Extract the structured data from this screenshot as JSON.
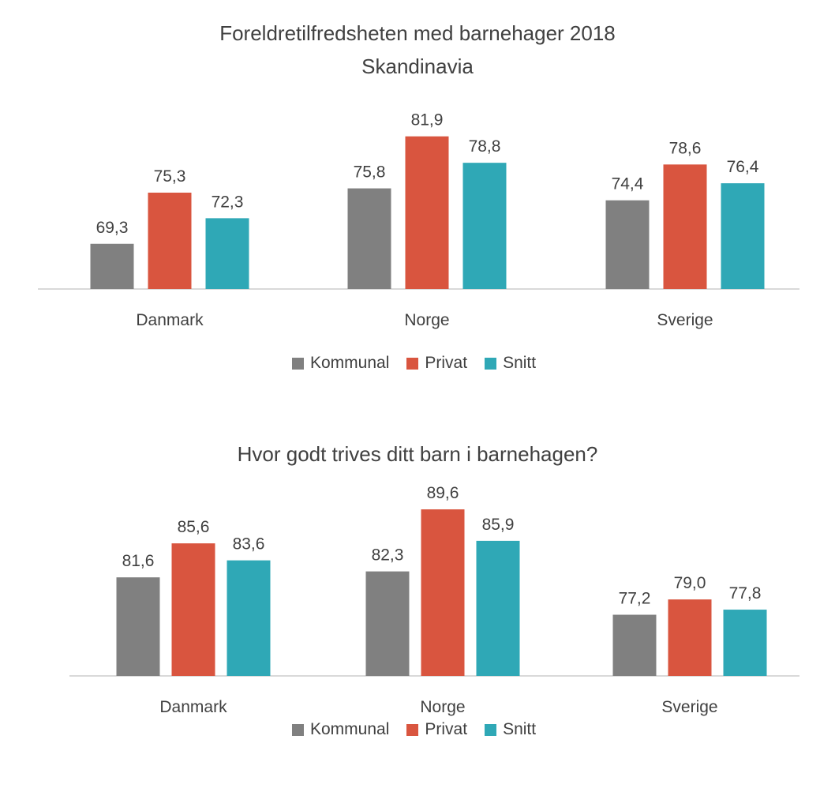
{
  "colors": {
    "Kommunal": "#808080",
    "Privat": "#d9553f",
    "Snitt": "#2fa8b6",
    "axis": "#d9d9d9"
  },
  "chart_data": [
    {
      "type": "bar",
      "title": "Foreldretilfredsheten med barnehager 2018",
      "subtitle": "Skandinavia",
      "categories": [
        "Danmark",
        "Norge",
        "Sverige"
      ],
      "series": [
        {
          "name": "Kommunal",
          "values": [
            69.3,
            75.8,
            74.4
          ]
        },
        {
          "name": "Privat",
          "values": [
            75.3,
            81.9,
            78.6
          ]
        },
        {
          "name": "Snitt",
          "values": [
            72.3,
            78.8,
            76.4
          ]
        }
      ],
      "data_labels": [
        [
          "69,3",
          "75,8",
          "74,4"
        ],
        [
          "75,3",
          "81,9",
          "78,6"
        ],
        [
          "72,3",
          "78,8",
          "76,4"
        ]
      ],
      "xlabel": "",
      "ylabel": "",
      "ylim": [
        64,
        84
      ],
      "grid": false,
      "legend_position": "bottom"
    },
    {
      "type": "bar",
      "title": "Hvor godt trives ditt barn i barnehagen?",
      "subtitle": "",
      "categories": [
        "Danmark",
        "Norge",
        "Sverige"
      ],
      "series": [
        {
          "name": "Kommunal",
          "values": [
            81.6,
            82.3,
            77.2
          ]
        },
        {
          "name": "Privat",
          "values": [
            85.6,
            89.6,
            79.0
          ]
        },
        {
          "name": "Snitt",
          "values": [
            83.6,
            85.9,
            77.8
          ]
        }
      ],
      "data_labels": [
        [
          "81,6",
          "82,3",
          "77,2"
        ],
        [
          "85,6",
          "89,6",
          "79,0"
        ],
        [
          "83,6",
          "85,9",
          "77,8"
        ]
      ],
      "xlabel": "",
      "ylabel": "",
      "ylim": [
        70,
        91
      ],
      "grid": false,
      "legend_position": "bottom"
    }
  ]
}
